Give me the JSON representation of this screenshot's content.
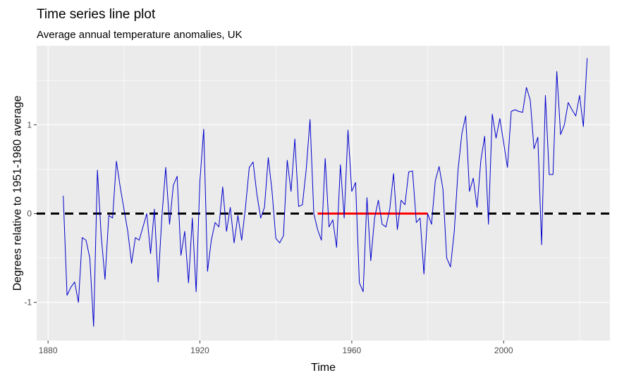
{
  "chart_data": {
    "type": "line",
    "title": "Time series line plot",
    "subtitle": "Average annual temperature anomalies, UK",
    "xlabel": "Time",
    "ylabel": "Degrees relative to 1951-1980 average",
    "xlim": [
      1877,
      2028
    ],
    "ylim": [
      -1.43,
      1.89
    ],
    "grid": true,
    "x_ticks": [
      1880,
      1920,
      1960,
      2000
    ],
    "x_tick_labels": [
      "1880",
      "1920",
      "1960",
      "2000"
    ],
    "y_ticks": [
      -1,
      0,
      1
    ],
    "y_tick_labels": [
      "-1",
      "0",
      "1"
    ],
    "colors": {
      "panel_background": "#ebebeb",
      "grid": "#ffffff",
      "series": "#0000cc",
      "baseline": "#000000",
      "reference_period": "#ff0000"
    },
    "series": [
      {
        "x": [
          1884,
          1885,
          1886,
          1887,
          1888,
          1889,
          1890,
          1891,
          1892,
          1893,
          1894,
          1895,
          1896,
          1897,
          1898,
          1899,
          1900,
          1901,
          1902,
          1903,
          1904,
          1905,
          1906,
          1907,
          1908,
          1909,
          1910,
          1911,
          1912,
          1913,
          1914,
          1915,
          1916,
          1917,
          1918,
          1919,
          1920,
          1921,
          1922,
          1923,
          1924,
          1925,
          1926,
          1927,
          1928,
          1929,
          1930,
          1931,
          1932,
          1933,
          1934,
          1935,
          1936,
          1937,
          1938,
          1939,
          1940,
          1941,
          1942,
          1943,
          1944,
          1945,
          1946,
          1947,
          1948,
          1949,
          1950,
          1951,
          1952,
          1953,
          1954,
          1955,
          1956,
          1957,
          1958,
          1959,
          1960,
          1961,
          1962,
          1963,
          1964,
          1965,
          1966,
          1967,
          1968,
          1969,
          1970,
          1971,
          1972,
          1973,
          1974,
          1975,
          1976,
          1977,
          1978,
          1979,
          1980,
          1981,
          1982,
          1983,
          1984,
          1985,
          1986,
          1987,
          1988,
          1989,
          1990,
          1991,
          1992,
          1993,
          1994,
          1995,
          1996,
          1997,
          1998,
          1999,
          2000,
          2001,
          2002,
          2003,
          2004,
          2005,
          2006,
          2007,
          2008,
          2009,
          2010,
          2011,
          2012,
          2013,
          2014,
          2015,
          2016,
          2017,
          2018,
          2019,
          2020,
          2021,
          2022
        ],
        "values": [
          0.2,
          -0.92,
          -0.83,
          -0.77,
          -1.0,
          -0.27,
          -0.3,
          -0.5,
          -1.27,
          0.49,
          -0.25,
          -0.74,
          -0.02,
          -0.05,
          0.59,
          0.3,
          0.05,
          -0.2,
          -0.56,
          -0.27,
          -0.3,
          -0.15,
          0.0,
          -0.45,
          0.05,
          -0.77,
          -0.02,
          0.52,
          -0.12,
          0.32,
          0.42,
          -0.47,
          -0.2,
          -0.78,
          -0.05,
          -0.88,
          0.37,
          0.95,
          -0.65,
          -0.3,
          -0.1,
          -0.15,
          0.3,
          -0.2,
          0.07,
          -0.33,
          -0.02,
          -0.3,
          0.07,
          0.52,
          0.58,
          0.22,
          -0.05,
          0.07,
          0.63,
          0.25,
          -0.28,
          -0.33,
          -0.25,
          0.6,
          0.25,
          0.84,
          0.08,
          0.1,
          0.5,
          1.06,
          0.0,
          -0.18,
          -0.3,
          0.62,
          -0.15,
          -0.07,
          -0.38,
          0.55,
          -0.05,
          0.94,
          0.25,
          0.35,
          -0.78,
          -0.88,
          0.18,
          -0.53,
          -0.05,
          0.15,
          -0.12,
          -0.15,
          0.05,
          0.45,
          -0.18,
          0.15,
          0.1,
          0.47,
          0.48,
          -0.1,
          -0.05,
          -0.68,
          0.0,
          -0.12,
          0.37,
          0.53,
          0.28,
          -0.5,
          -0.6,
          -0.2,
          0.5,
          0.9,
          1.1,
          0.25,
          0.4,
          0.07,
          0.6,
          0.87,
          -0.12,
          1.12,
          0.85,
          1.07,
          0.8,
          0.52,
          1.15,
          1.17,
          1.15,
          1.14,
          1.42,
          1.28,
          0.73,
          0.86,
          -0.35,
          1.33,
          0.44,
          0.44,
          1.6,
          0.89,
          1.0,
          1.25,
          1.17,
          1.1,
          1.33,
          0.98,
          1.75
        ]
      }
    ],
    "baseline": {
      "y": 0,
      "style": "dashed"
    },
    "reference_period": {
      "x_start": 1951,
      "x_end": 1980,
      "y": 0
    }
  }
}
